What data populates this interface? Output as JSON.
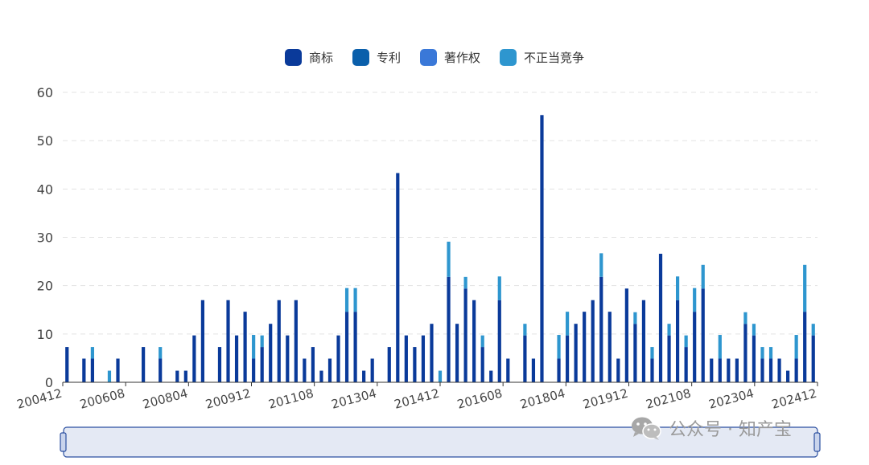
{
  "legend": [
    {
      "name": "商标",
      "color": "#0a3a9a"
    },
    {
      "name": "专利",
      "color": "#0a5fab"
    },
    {
      "name": "著作权",
      "color": "#3a78d8"
    },
    {
      "name": "不正当竞争",
      "color": "#2e96cf"
    }
  ],
  "watermark": {
    "text": "公众号 · 知产宝",
    "icon": "wechat-icon"
  },
  "chart_data": {
    "type": "bar",
    "stacked": true,
    "ylim": [
      0,
      60
    ],
    "yticks": [
      0,
      10,
      20,
      30,
      40,
      50,
      60
    ],
    "grid": "horizontal dashed",
    "legend_position": "top-center",
    "xtick_labels": [
      "200412",
      "200608",
      "200804",
      "200912",
      "201108",
      "201304",
      "201412",
      "201608",
      "201804",
      "201912",
      "202108",
      "202304",
      "202412"
    ],
    "series": [
      {
        "name": "商标",
        "values": [
          7.3,
          0,
          4.9,
          4.9,
          0,
          0,
          4.9,
          0,
          0,
          7.3,
          0,
          4.9,
          0,
          2.4,
          2.4,
          9.7,
          17,
          0,
          7.3,
          17,
          9.7,
          14.6,
          4.9,
          7.3,
          12.1,
          17,
          9.7,
          17,
          4.9,
          7.3,
          2.4,
          4.9,
          9.7,
          14.6,
          14.6,
          2.4,
          4.9,
          0,
          7.3,
          43.3,
          9.7,
          7.3,
          9.7,
          12.1,
          0,
          21.8,
          12.1,
          19.4,
          17,
          7.3,
          2.4,
          17,
          4.9,
          0,
          9.7,
          4.9,
          55.3,
          0,
          4.9,
          9.7,
          12.1,
          14.6,
          17,
          21.8,
          14.6,
          4.9,
          19.4,
          12.1,
          17,
          4.9,
          26.6,
          9.7,
          17,
          7.3,
          14.6,
          19.4,
          4.9,
          4.9,
          4.9,
          4.9,
          12.1,
          9.7,
          4.9,
          4.9,
          4.9,
          2.4,
          4.9,
          14.6,
          9.7
        ]
      },
      {
        "name": "专利",
        "values": [
          0,
          0,
          0,
          0,
          0,
          0,
          0,
          0,
          0,
          0,
          0,
          0,
          0,
          0,
          0,
          0,
          0,
          0,
          0,
          0,
          0,
          0,
          0,
          0,
          0,
          0,
          0,
          0,
          0,
          0,
          0,
          0,
          0,
          0,
          0,
          0,
          0,
          0,
          0,
          0,
          0,
          0,
          0,
          0,
          0,
          0,
          0,
          0,
          0,
          0,
          0,
          0,
          0,
          0,
          0,
          0,
          0,
          0,
          0,
          0,
          0,
          0,
          0,
          0,
          0,
          0,
          0,
          0,
          0,
          0,
          0,
          0,
          0,
          0,
          0,
          0,
          0,
          0,
          0,
          0,
          0,
          0,
          0,
          0,
          0,
          0,
          0,
          0,
          0
        ]
      },
      {
        "name": "著作权",
        "values": [
          0,
          0,
          0,
          0,
          0,
          0,
          0,
          0,
          0,
          0,
          0,
          0,
          0,
          0,
          0,
          0,
          0,
          0,
          0,
          0,
          0,
          0,
          0,
          0,
          0,
          0,
          0,
          0,
          0,
          0,
          0,
          0,
          0,
          0,
          0,
          0,
          0,
          0,
          0,
          0,
          0,
          0,
          0,
          0,
          0,
          0,
          0,
          0,
          0,
          0,
          0,
          0,
          0,
          0,
          0,
          0,
          0,
          0,
          0,
          0,
          0,
          0,
          0,
          0,
          0,
          0,
          0,
          0,
          0,
          0,
          0,
          0,
          0,
          0,
          0,
          0,
          0,
          0,
          0,
          0,
          0,
          0,
          0,
          0,
          0,
          0,
          0,
          0,
          0
        ]
      },
      {
        "name": "不正当竞争",
        "values": [
          0,
          0,
          0,
          2.4,
          0,
          2.4,
          0,
          0,
          0,
          0,
          0,
          2.4,
          0,
          0,
          0,
          0,
          0,
          0,
          0,
          0,
          0,
          0,
          4.9,
          2.4,
          0,
          0,
          0,
          0,
          0,
          0,
          0,
          0,
          0,
          4.9,
          4.9,
          0,
          0,
          0,
          0,
          0,
          0,
          0,
          0,
          0,
          2.4,
          7.3,
          0,
          2.4,
          0,
          2.4,
          0,
          4.9,
          0,
          0,
          2.4,
          0,
          0,
          0,
          4.9,
          4.9,
          0,
          0,
          0,
          4.9,
          0,
          0,
          0,
          2.4,
          0,
          2.4,
          0,
          2.4,
          4.9,
          2.4,
          4.9,
          4.9,
          0,
          4.9,
          0,
          0,
          2.4,
          2.4,
          2.4,
          2.4,
          0,
          0,
          4.9,
          9.7,
          2.4
        ]
      }
    ]
  }
}
